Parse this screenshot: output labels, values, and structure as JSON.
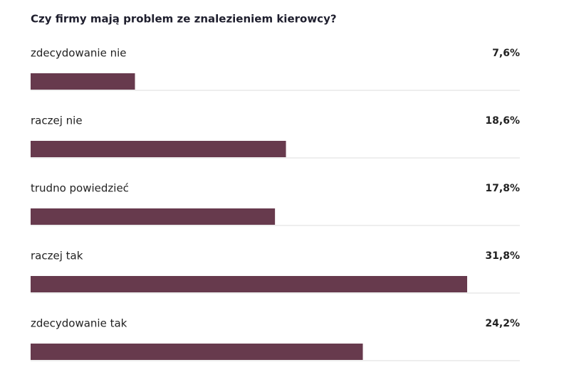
{
  "chart_data": {
    "type": "bar",
    "title": "Czy firmy mają problem ze znalezieniem kierowcy?",
    "categories": [
      "zdecydowanie nie",
      "raczej nie",
      "trudno powiedzieć",
      "raczej tak",
      "zdecydowanie tak"
    ],
    "values": [
      7.6,
      18.6,
      17.8,
      31.8,
      24.2
    ],
    "value_labels": [
      "7,6%",
      "18,6%",
      "17,8%",
      "31,8%",
      "24,2%"
    ],
    "color": "#673a4d"
  }
}
